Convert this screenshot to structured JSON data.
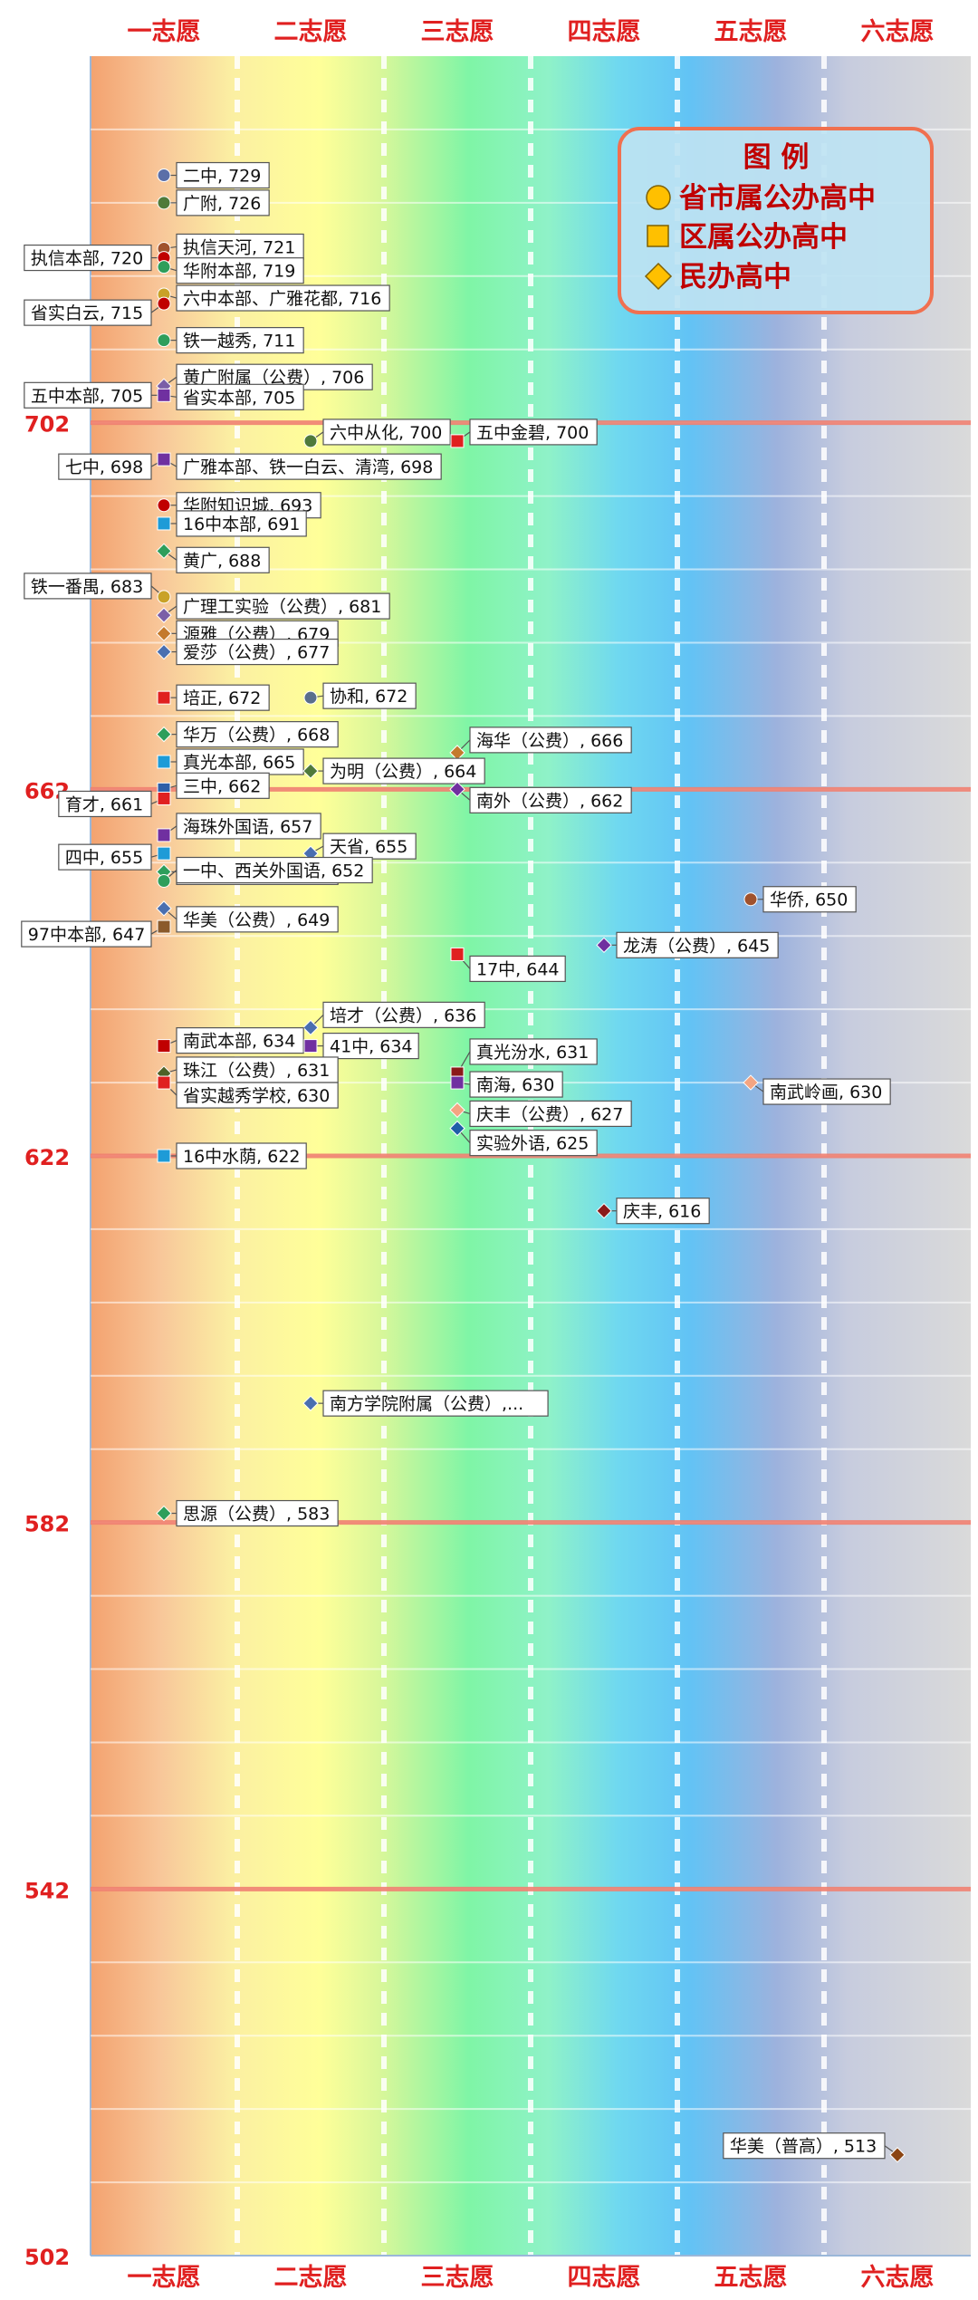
{
  "chart_data": {
    "type": "scatter",
    "title": "",
    "xlabel": "",
    "ylabel": "",
    "categories": [
      "一志愿",
      "二志愿",
      "三志愿",
      "四志愿",
      "五志愿",
      "六志愿"
    ],
    "ylim": [
      502,
      742
    ],
    "y_ticks": [
      702,
      662,
      622,
      582,
      542,
      502
    ],
    "grid": true,
    "legend": {
      "placement": "top-right",
      "title": "图 例",
      "items": [
        {
          "label": "省市属公办高中",
          "marker": "circle",
          "color": "#FFC000"
        },
        {
          "label": "区属公办高中",
          "marker": "square",
          "color": "#FFC000"
        },
        {
          "label": "民办高中",
          "marker": "diamond",
          "color": "#FFC000"
        }
      ]
    },
    "points": [
      {
        "label": "二中, 729",
        "choice": 1,
        "score": 729,
        "marker": "circle",
        "color": "#5B6FA8"
      },
      {
        "label": "广附, 726",
        "choice": 1,
        "score": 726,
        "marker": "circle",
        "color": "#4F7A3A"
      },
      {
        "label": "执信天河, 721",
        "choice": 1,
        "score": 721,
        "marker": "circle",
        "color": "#A0522D"
      },
      {
        "label": "执信本部, 720",
        "choice": 1,
        "score": 720,
        "marker": "circle",
        "color": "#C00000"
      },
      {
        "label": "华附本部, 719",
        "choice": 1,
        "score": 719,
        "marker": "circle",
        "color": "#2E9E5B"
      },
      {
        "label": "六中本部、广雅花都, 716",
        "choice": 1,
        "score": 716,
        "marker": "circle",
        "color": "#C9A227"
      },
      {
        "label": "省实白云, 715",
        "choice": 1,
        "score": 715,
        "marker": "circle",
        "color": "#C00000"
      },
      {
        "label": "铁一越秀, 711",
        "choice": 1,
        "score": 711,
        "marker": "circle",
        "color": "#2E9E5B"
      },
      {
        "label": "黄广附属（公费）, 706",
        "choice": 1,
        "score": 706,
        "marker": "diamond",
        "color": "#7B5EA7"
      },
      {
        "label": "省实本部, 705",
        "choice": 1,
        "score": 705,
        "marker": "circle",
        "color": "#C00000"
      },
      {
        "label": "五中本部, 705",
        "choice": 1,
        "score": 705,
        "marker": "square",
        "color": "#7030A0"
      },
      {
        "label": "六中从化, 700",
        "choice": 2,
        "score": 700,
        "marker": "circle",
        "color": "#4F7A3A"
      },
      {
        "label": "五中金碧, 700",
        "choice": 3,
        "score": 700,
        "marker": "square",
        "color": "#E02020"
      },
      {
        "label": "广雅本部、铁一白云、清湾, 698",
        "choice": 1,
        "score": 698,
        "marker": "circle",
        "color": "#2E5FA8"
      },
      {
        "label": "七中, 698",
        "choice": 1,
        "score": 698,
        "marker": "square",
        "color": "#7030A0"
      },
      {
        "label": "华附知识城, 693",
        "choice": 1,
        "score": 693,
        "marker": "circle",
        "color": "#C00000"
      },
      {
        "label": "16中本部, 691",
        "choice": 1,
        "score": 691,
        "marker": "square",
        "color": "#1E9BD7"
      },
      {
        "label": "黄广, 688",
        "choice": 1,
        "score": 688,
        "marker": "diamond",
        "color": "#2E9E5B"
      },
      {
        "label": "铁一番禺, 683",
        "choice": 1,
        "score": 683,
        "marker": "circle",
        "color": "#C9A227"
      },
      {
        "label": "广理工实验（公费）, 681",
        "choice": 1,
        "score": 681,
        "marker": "diamond",
        "color": "#7B5EA7"
      },
      {
        "label": "源雅（公费）, 679",
        "choice": 1,
        "score": 679,
        "marker": "diamond",
        "color": "#C47A2C"
      },
      {
        "label": "爱莎（公费）, 677",
        "choice": 1,
        "score": 677,
        "marker": "diamond",
        "color": "#4A6FB0"
      },
      {
        "label": "培正, 672",
        "choice": 1,
        "score": 672,
        "marker": "square",
        "color": "#E02020"
      },
      {
        "label": "协和, 672",
        "choice": 2,
        "score": 672,
        "marker": "circle",
        "color": "#5A6E8C"
      },
      {
        "label": "华万（公费）, 668",
        "choice": 1,
        "score": 668,
        "marker": "diamond",
        "color": "#2E9E5B"
      },
      {
        "label": "海华（公费）, 666",
        "choice": 3,
        "score": 666,
        "marker": "diamond",
        "color": "#C47A2C"
      },
      {
        "label": "真光本部, 665",
        "choice": 1,
        "score": 665,
        "marker": "square",
        "color": "#1E9BD7"
      },
      {
        "label": "为明（公费）, 664",
        "choice": 2,
        "score": 664,
        "marker": "diamond",
        "color": "#4F7A3A"
      },
      {
        "label": "三中, 662",
        "choice": 1,
        "score": 662,
        "marker": "square",
        "color": "#2E5FA8"
      },
      {
        "label": "南外（公费）, 662",
        "choice": 3,
        "score": 662,
        "marker": "diamond",
        "color": "#7030A0"
      },
      {
        "label": "育才, 661",
        "choice": 1,
        "score": 661,
        "marker": "square",
        "color": "#E02020"
      },
      {
        "label": "海珠外国语, 657",
        "choice": 1,
        "score": 657,
        "marker": "square",
        "color": "#7030A0"
      },
      {
        "label": "四中, 655",
        "choice": 1,
        "score": 655,
        "marker": "square",
        "color": "#1E9BD7"
      },
      {
        "label": "天省, 655",
        "choice": 2,
        "score": 655,
        "marker": "diamond",
        "color": "#4A6FB0"
      },
      {
        "label": "华商（公费）, 653",
        "choice": 1,
        "score": 653,
        "marker": "diamond",
        "color": "#2E9E5B"
      },
      {
        "label": "一中、西关外国语, 652",
        "choice": 1,
        "score": 652,
        "marker": "circle",
        "color": "#2E9E5B"
      },
      {
        "label": "华侨, 650",
        "choice": 5,
        "score": 650,
        "marker": "circle",
        "color": "#A0522D"
      },
      {
        "label": "华美（公费）, 649",
        "choice": 1,
        "score": 649,
        "marker": "diamond",
        "color": "#4A6FB0"
      },
      {
        "label": "97中本部, 647",
        "choice": 1,
        "score": 647,
        "marker": "square",
        "color": "#8B5A2B"
      },
      {
        "label": "龙涛（公费）, 645",
        "choice": 4,
        "score": 645,
        "marker": "diamond",
        "color": "#7030A0"
      },
      {
        "label": "17中, 644",
        "choice": 3,
        "score": 644,
        "marker": "square",
        "color": "#E02020"
      },
      {
        "label": "培才（公费）, 636",
        "choice": 2,
        "score": 636,
        "marker": "diamond",
        "color": "#4A6FB0"
      },
      {
        "label": "南武本部, 634",
        "choice": 1,
        "score": 634,
        "marker": "square",
        "color": "#C00000"
      },
      {
        "label": "41中, 634",
        "choice": 2,
        "score": 634,
        "marker": "square",
        "color": "#7030A0"
      },
      {
        "label": "真光汾水, 631",
        "choice": 3,
        "score": 631,
        "marker": "square",
        "color": "#8B1A1A"
      },
      {
        "label": "珠江（公费）, 631",
        "choice": 1,
        "score": 631,
        "marker": "diamond",
        "color": "#4F6228"
      },
      {
        "label": "南海, 630",
        "choice": 3,
        "score": 630,
        "marker": "square",
        "color": "#7030A0"
      },
      {
        "label": "省实越秀学校, 630",
        "choice": 1,
        "score": 630,
        "marker": "square",
        "color": "#E02020"
      },
      {
        "label": "南武岭画, 630",
        "choice": 5,
        "score": 630,
        "marker": "diamond",
        "color": "#F4A582"
      },
      {
        "label": "庆丰（公费）, 627",
        "choice": 3,
        "score": 627,
        "marker": "diamond",
        "color": "#F4A582"
      },
      {
        "label": "实验外语, 625",
        "choice": 3,
        "score": 625,
        "marker": "diamond",
        "color": "#1F5FA8"
      },
      {
        "label": "16中水荫, 622",
        "choice": 1,
        "score": 622,
        "marker": "square",
        "color": "#1E9BD7"
      },
      {
        "label": "庆丰, 616",
        "choice": 4,
        "score": 616,
        "marker": "diamond",
        "color": "#8B1A1A"
      },
      {
        "label": "南方学院附属（公费）,...",
        "choice": 2,
        "score": 595,
        "marker": "diamond",
        "color": "#4A6FB0"
      },
      {
        "label": "思源（公费）, 583",
        "choice": 1,
        "score": 583,
        "marker": "diamond",
        "color": "#2E9E5B"
      },
      {
        "label": "华美（普高）, 513",
        "choice": 6,
        "score": 513,
        "marker": "diamond",
        "color": "#8B4513"
      }
    ]
  }
}
